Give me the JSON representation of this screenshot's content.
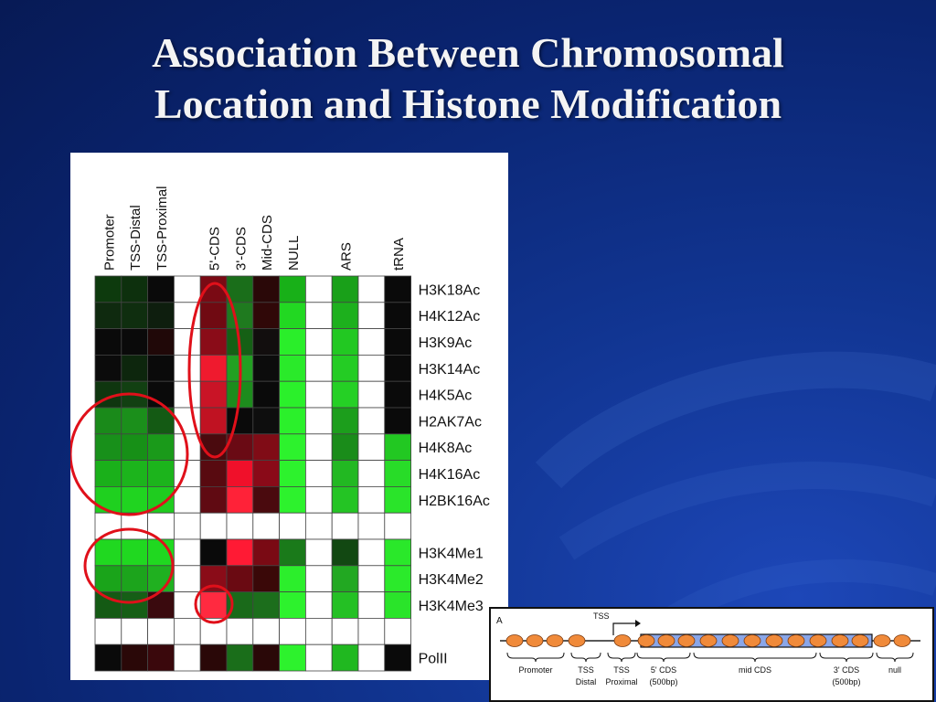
{
  "slide": {
    "title_line1": "Association Between Chromosomal",
    "title_line2": "Location and Histone Modification"
  },
  "heatmap": {
    "columns": [
      "Promoter",
      "TSS-Distal",
      "TSS-Proximal",
      "",
      "5'-CDS",
      "3'-CDS",
      "Mid-CDS",
      "NULL",
      "",
      "ARS",
      "",
      "tRNA"
    ],
    "rows": [
      "H3K18Ac",
      "H4K12Ac",
      "H3K9Ac",
      "H3K14Ac",
      "H4K5Ac",
      "H2AK7Ac",
      "H4K8Ac",
      "H4K16Ac",
      "H2BK16Ac",
      "",
      "H3K4Me1",
      "H3K4Me2",
      "H3K4Me3",
      "",
      "PolII"
    ],
    "cells": [
      [
        "#0d3a0d",
        "#0d300d",
        "#0a0a0a",
        "#ffffff",
        "#7a0a14",
        "#1a6e1a",
        "#2a0808",
        "#18b018",
        "#ffffff",
        "#19a019",
        "#ffffff",
        "#0a0a0a"
      ],
      [
        "#0f2a0f",
        "#0f2e0f",
        "#0e1e0e",
        "#ffffff",
        "#700a12",
        "#1f7a1f",
        "#300808",
        "#22d822",
        "#ffffff",
        "#1db01d",
        "#ffffff",
        "#0a0a0a"
      ],
      [
        "#0a0a0a",
        "#0a0a0a",
        "#200808",
        "#ffffff",
        "#8a0c18",
        "#156015",
        "#120e0e",
        "#2aee2a",
        "#ffffff",
        "#22c822",
        "#ffffff",
        "#0a0a0a"
      ],
      [
        "#0b0b0b",
        "#0d260d",
        "#0a0a0a",
        "#ffffff",
        "#ef1a2e",
        "#22a022",
        "#0c0c0c",
        "#2aea2a",
        "#ffffff",
        "#24cc24",
        "#ffffff",
        "#0a0a0a"
      ],
      [
        "#0f360f",
        "#124012",
        "#0a0a0a",
        "#ffffff",
        "#c91426",
        "#1d8c1d",
        "#0a0a0a",
        "#2bf02b",
        "#ffffff",
        "#25d025",
        "#ffffff",
        "#0a0a0a"
      ],
      [
        "#1a8a1a",
        "#1b8f1b",
        "#145a14",
        "#ffffff",
        "#c01222",
        "#0a0a0a",
        "#0e0e0e",
        "#2bf02b",
        "#ffffff",
        "#1c9e1c",
        "#ffffff",
        "#0a0a0a"
      ],
      [
        "#18901a",
        "#179017",
        "#1a9a1a",
        "#ffffff",
        "#4a0a0e",
        "#6a0a14",
        "#800c16",
        "#2df22d",
        "#ffffff",
        "#1a8c1a",
        "#ffffff",
        "#22c822"
      ],
      [
        "#1ab01a",
        "#1cb41c",
        "#1cb41c",
        "#ffffff",
        "#580a10",
        "#f0102a",
        "#8a0a18",
        "#2df22d",
        "#ffffff",
        "#22b822",
        "#ffffff",
        "#28dc28"
      ],
      [
        "#1fd01f",
        "#20d420",
        "#1fcc1f",
        "#ffffff",
        "#600a12",
        "#ff2238",
        "#4a0a0e",
        "#2df22d",
        "#ffffff",
        "#24c424",
        "#ffffff",
        "#2ae42a"
      ],
      [
        "#ffffff",
        "#ffffff",
        "#ffffff",
        "#ffffff",
        "#ffffff",
        "#ffffff",
        "#ffffff",
        "#ffffff",
        "#ffffff",
        "#ffffff",
        "#ffffff",
        "#ffffff"
      ],
      [
        "#20d820",
        "#20d820",
        "#20d820",
        "#ffffff",
        "#0a0a0a",
        "#ff1a34",
        "#7a0a14",
        "#1a7a1a",
        "#ffffff",
        "#124812",
        "#ffffff",
        "#2ae82a"
      ],
      [
        "#1aa41a",
        "#1ca41c",
        "#20b020",
        "#ffffff",
        "#8a0c18",
        "#6a0a12",
        "#3a0808",
        "#2cee2c",
        "#ffffff",
        "#22a822",
        "#ffffff",
        "#2bea2b"
      ],
      [
        "#145a14",
        "#165e16",
        "#3a0a0e",
        "#ffffff",
        "#ff2a40",
        "#1a6a1a",
        "#1c6e1c",
        "#2df22d",
        "#ffffff",
        "#24c024",
        "#ffffff",
        "#2ae42a"
      ],
      [
        "#ffffff",
        "#ffffff",
        "#ffffff",
        "#ffffff",
        "#ffffff",
        "#ffffff",
        "#ffffff",
        "#ffffff",
        "#ffffff",
        "#ffffff",
        "#ffffff",
        "#ffffff"
      ],
      [
        "#0a0a0a",
        "#2a0808",
        "#3a080c",
        "#ffffff",
        "#2a0808",
        "#1a6e1a",
        "#2a0808",
        "#2df22d",
        "#ffffff",
        "#20b820",
        "#ffffff",
        "#0a0a0a"
      ]
    ],
    "highlight_color": "#e0101a"
  },
  "inset": {
    "panel_label": "A",
    "tss_label": "TSS",
    "region_labels": [
      {
        "line1": "Promoter",
        "line2": ""
      },
      {
        "line1": "TSS",
        "line2": "Distal"
      },
      {
        "line1": "TSS",
        "line2": "Proximal"
      },
      {
        "line1": "5' CDS",
        "line2": "(500bp)"
      },
      {
        "line1": "mid CDS",
        "line2": ""
      },
      {
        "line1": "3' CDS",
        "line2": "(500bp)"
      },
      {
        "line1": "null",
        "line2": ""
      }
    ],
    "colors": {
      "nucleosome": "#f08a3a",
      "gene": "#8aa6e8"
    }
  }
}
